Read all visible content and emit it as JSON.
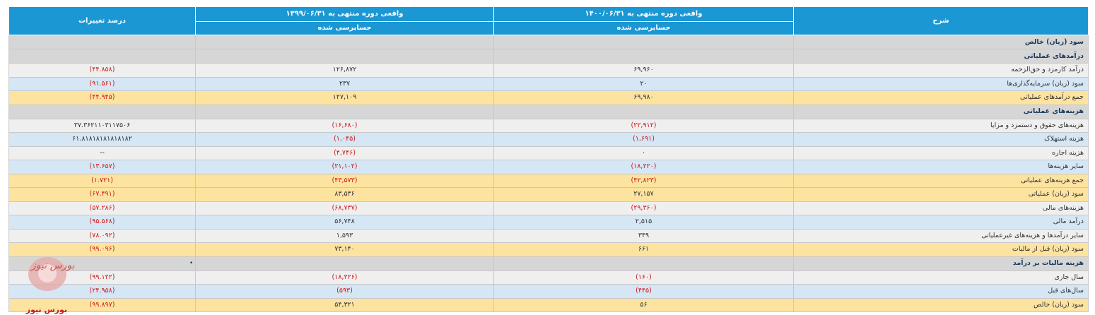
{
  "header": {
    "col_desc": "شرح",
    "col_1400": "واقعی دوره منتهی به ۱۴۰۰/۰۶/۳۱",
    "col_1399": "واقعی دوره منتهی به ۱۳۹۹/۰۶/۳۱",
    "col_change": "درصد تغییرات",
    "audited_1400": "حسابرسی شده",
    "audited_1399": "حسابرسی شده"
  },
  "rows": [
    {
      "type": "section",
      "desc": "سود (زیان) خالص",
      "v1400": "",
      "v1399": "",
      "change": ""
    },
    {
      "type": "section",
      "desc": "درآمدهای عملیاتی",
      "v1400": "",
      "v1399": "",
      "change": ""
    },
    {
      "type": "gray",
      "desc": "درآمد کارمزد و حق‌الزحمه",
      "v1400": "۶۹,۹۶۰",
      "v1399": "۱۲۶,۸۷۲",
      "change": "(۴۴.۸۵۸)"
    },
    {
      "type": "blue",
      "desc": "سود (زیان) سرمایه‌گذاری‌ها",
      "v1400": "۲۰",
      "v1399": "۲۳۷",
      "change": "(۹۱.۵۶۱)"
    },
    {
      "type": "yellow",
      "desc": "جمع درآمدهای عملیاتی",
      "v1400": "۶۹,۹۸۰",
      "v1399": "۱۲۷,۱۰۹",
      "change": "(۴۴.۹۴۵)"
    },
    {
      "type": "section",
      "desc": "هزینه‌های عملیاتی",
      "v1400": "",
      "v1399": "",
      "change": ""
    },
    {
      "type": "gray",
      "desc": "هزینه‌های حقوق و دستمزد و مزایا",
      "v1400": "(۲۲,۹۱۲)",
      "v1399": "(۱۶,۶۸۰)",
      "change": "۳۷.۳۶۲۱۱۰۳۱۱۷۵۰۶"
    },
    {
      "type": "blue",
      "desc": "هزینه استهلاک",
      "v1400": "(۱,۶۹۱)",
      "v1399": "(۱,۰۴۵)",
      "change": "۶۱.۸۱۸۱۸۱۸۱۸۱۸۱۸۲"
    },
    {
      "type": "gray",
      "desc": "هزینه اجاره",
      "v1400": "۰",
      "v1399": "(۴,۷۴۶)",
      "change": "--"
    },
    {
      "type": "blue",
      "desc": "سایر هزینه‌ها",
      "v1400": "(۱۸,۲۲۰)",
      "v1399": "(۲۱,۱۰۲)",
      "change": "(۱۳.۶۵۷)"
    },
    {
      "type": "yellow",
      "desc": "جمع هزینه‌های عملیاتی",
      "v1400": "(۴۲,۸۲۳)",
      "v1399": "(۴۳,۵۷۳)",
      "change": "(۱.۷۲۱)"
    },
    {
      "type": "yellow",
      "desc": "سود (زیان) عملیاتی",
      "v1400": "۲۷,۱۵۷",
      "v1399": "۸۳,۵۳۶",
      "change": "(۶۷.۴۹۱)"
    },
    {
      "type": "gray",
      "desc": "هزینه‌های مالی",
      "v1400": "(۲۹,۳۶۰)",
      "v1399": "(۶۸,۷۳۷)",
      "change": "(۵۷.۲۸۶)"
    },
    {
      "type": "blue",
      "desc": "درآمد مالی",
      "v1400": "۲,۵۱۵",
      "v1399": "۵۶,۷۴۸",
      "change": "(۹۵.۵۶۸)"
    },
    {
      "type": "gray",
      "desc": "سایر درآمدها و هزینه‌های غیرعملیاتی",
      "v1400": "۳۴۹",
      "v1399": "۱,۵۹۳",
      "change": "(۷۸.۰۹۲)"
    },
    {
      "type": "yellow",
      "desc": "سود (زیان) قبل از مالیات",
      "v1400": "۶۶۱",
      "v1399": "۷۳,۱۴۰",
      "change": "(۹۹.۰۹۶)"
    },
    {
      "type": "section",
      "desc": "هزینه مالیات بر درآمد",
      "v1400": "",
      "v1399": "",
      "change": ""
    },
    {
      "type": "gray",
      "desc": "سال جاری",
      "v1400": "(۱۶۰)",
      "v1399": "(۱۸,۲۲۶)",
      "change": "(۹۹.۱۲۲)"
    },
    {
      "type": "blue",
      "desc": "سال‌های قبل",
      "v1400": "(۴۴۵)",
      "v1399": "(۵۹۳)",
      "change": "(۲۴.۹۵۸)"
    },
    {
      "type": "yellow",
      "desc": "سود (زیان) خالص",
      "v1400": "۵۶",
      "v1399": "۵۴,۳۲۱",
      "change": "(۹۹.۸۹۷)"
    }
  ],
  "watermark": {
    "logo_text": "بورس نیوز",
    "brand_text": "بورس نیوز",
    "marker": "•"
  }
}
